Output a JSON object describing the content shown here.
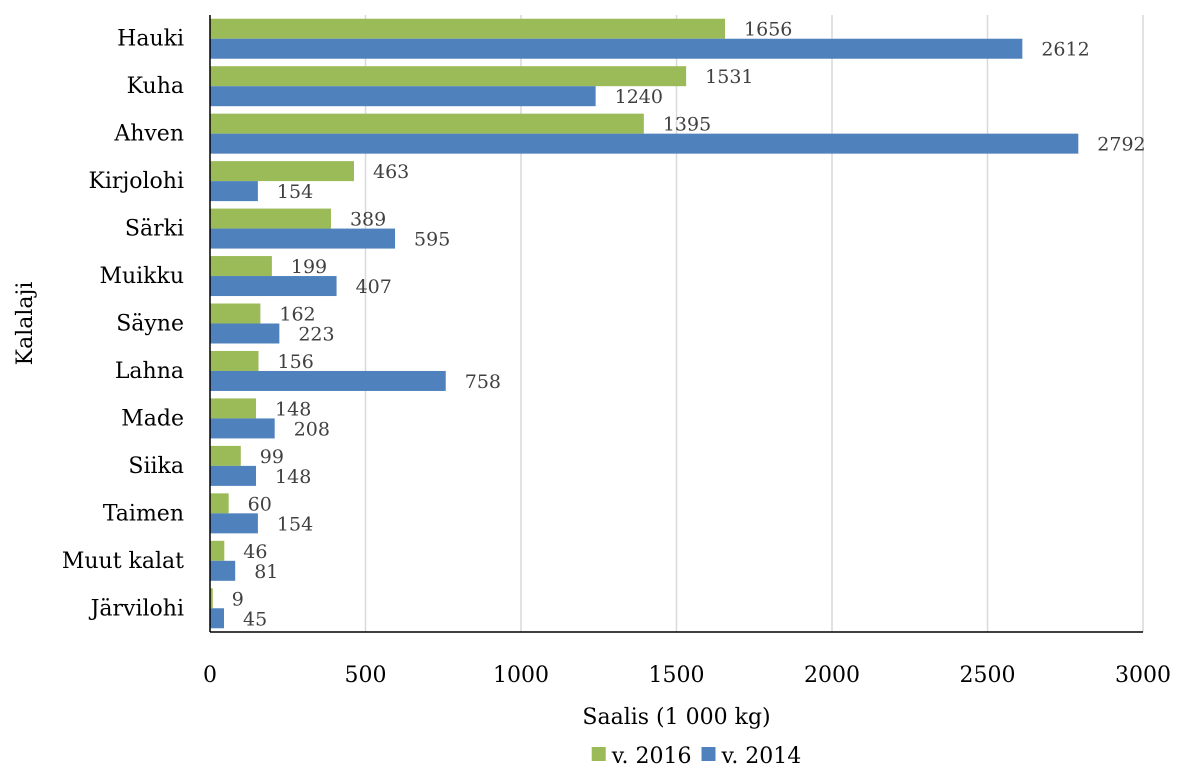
{
  "chart_data": {
    "type": "bar",
    "orientation": "horizontal",
    "categories": [
      "Hauki",
      "Kuha",
      "Ahven",
      "Kirjolohi",
      "Särki",
      "Muikku",
      "Säyne",
      "Lahna",
      "Made",
      "Siika",
      "Taimen",
      "Muut kalat",
      "Järvilohi"
    ],
    "series": [
      {
        "name": "v. 2016",
        "color": "#9bbb59",
        "values": [
          1656,
          1531,
          1395,
          463,
          389,
          199,
          162,
          156,
          148,
          99,
          60,
          46,
          9
        ]
      },
      {
        "name": "v. 2014",
        "color": "#4f81bd",
        "values": [
          2612,
          1240,
          2792,
          154,
          595,
          407,
          223,
          758,
          208,
          148,
          154,
          81,
          45
        ]
      }
    ],
    "xlabel": "Saalis (1 000 kg)",
    "ylabel": "Kalalaji",
    "xlim": [
      0,
      3000
    ],
    "xticks": [
      "0",
      "500",
      "1000",
      "1500",
      "2000",
      "2500",
      "3000"
    ],
    "grid": "vertical",
    "legend_position": "bottom",
    "data_labels": true
  }
}
